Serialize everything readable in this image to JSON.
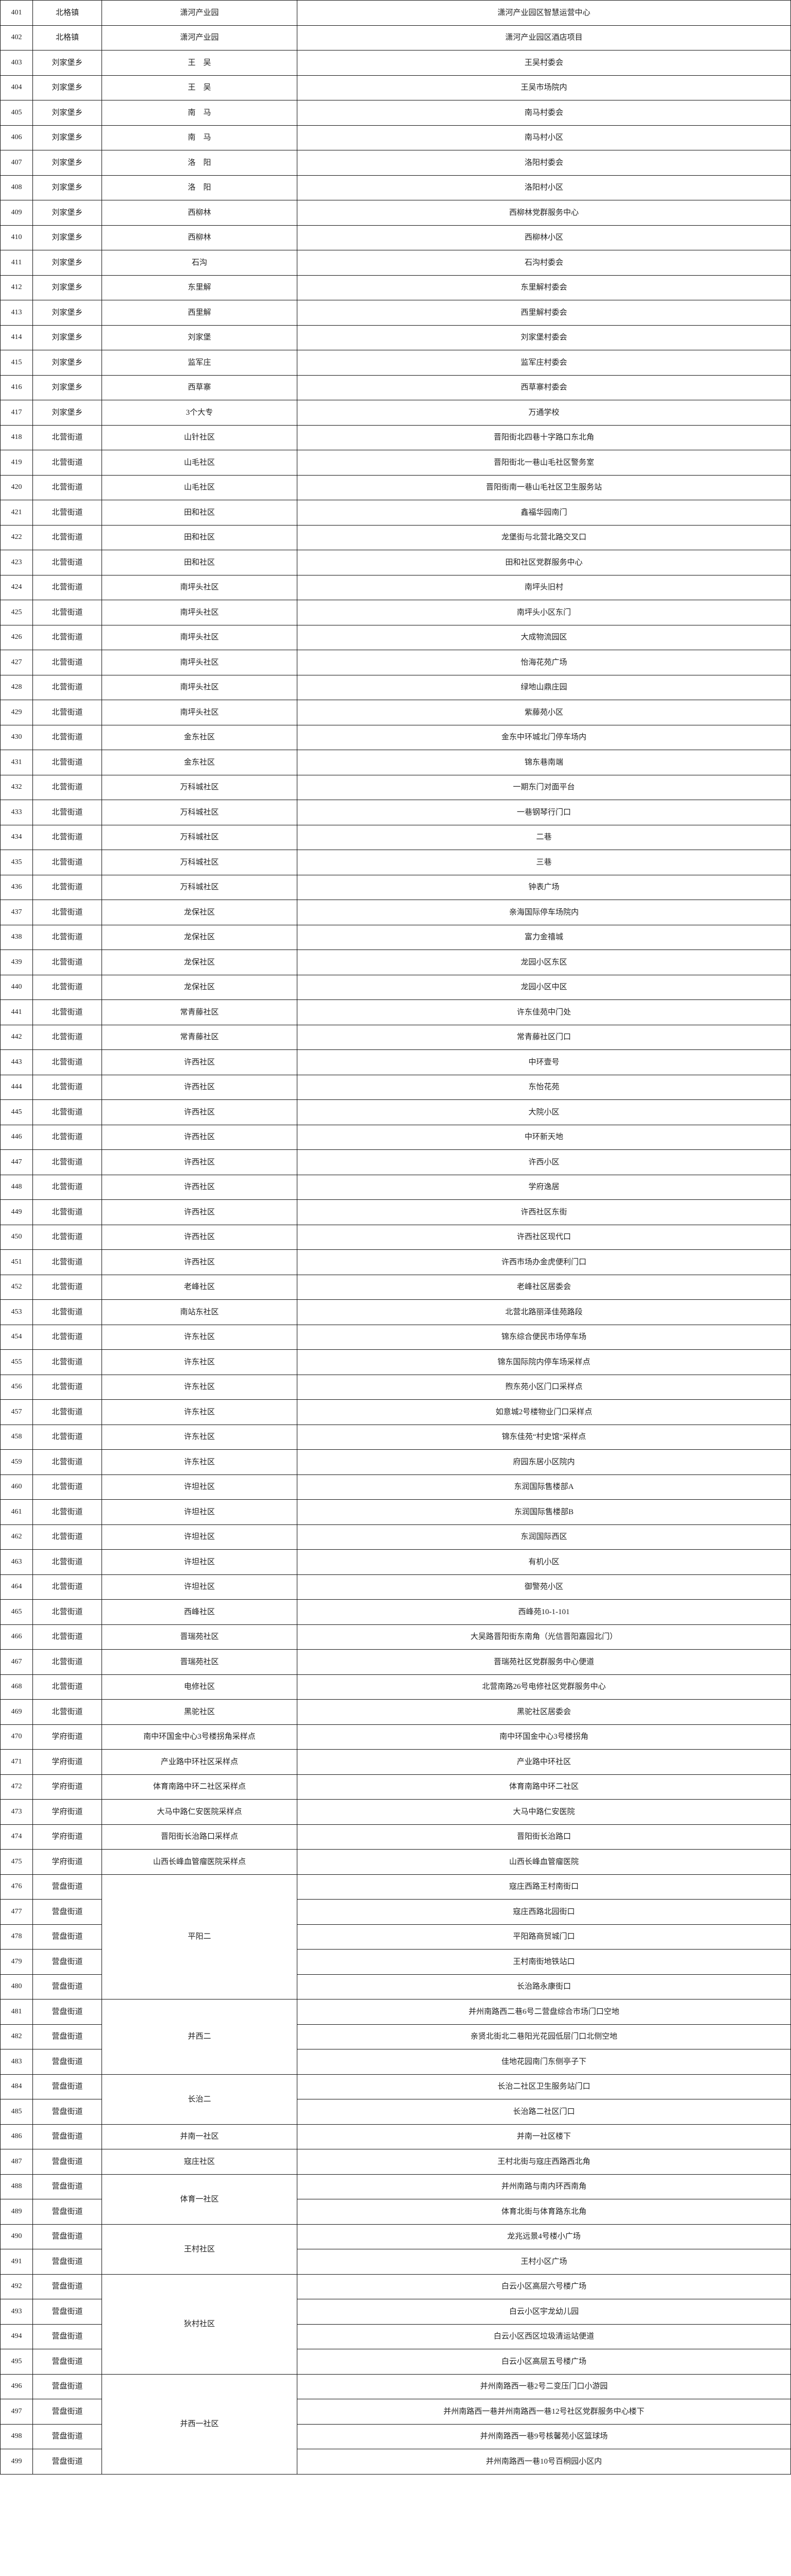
{
  "rows": [
    {
      "no": "401",
      "district": "北格镇",
      "community": "潇河产业园",
      "location": "潇河产业园区智慧运营中心"
    },
    {
      "no": "402",
      "district": "北格镇",
      "community": "潇河产业园",
      "location": "潇河产业园区酒店项目"
    },
    {
      "no": "403",
      "district": "刘家堡乡",
      "community": "王　吴",
      "location": "王吴村委会"
    },
    {
      "no": "404",
      "district": "刘家堡乡",
      "community": "王　吴",
      "location": "王吴市场院内"
    },
    {
      "no": "405",
      "district": "刘家堡乡",
      "community": "南　马",
      "location": "南马村委会"
    },
    {
      "no": "406",
      "district": "刘家堡乡",
      "community": "南　马",
      "location": "南马村小区"
    },
    {
      "no": "407",
      "district": "刘家堡乡",
      "community": "洛　阳",
      "location": "洛阳村委会"
    },
    {
      "no": "408",
      "district": "刘家堡乡",
      "community": "洛　阳",
      "location": "洛阳村小区"
    },
    {
      "no": "409",
      "district": "刘家堡乡",
      "community": "西柳林",
      "location": "西柳林党群服务中心"
    },
    {
      "no": "410",
      "district": "刘家堡乡",
      "community": "西柳林",
      "location": "西柳林小区"
    },
    {
      "no": "411",
      "district": "刘家堡乡",
      "community": "石沟",
      "location": "石沟村委会"
    },
    {
      "no": "412",
      "district": "刘家堡乡",
      "community": "东里解",
      "location": "东里解村委会"
    },
    {
      "no": "413",
      "district": "刘家堡乡",
      "community": "西里解",
      "location": "西里解村委会"
    },
    {
      "no": "414",
      "district": "刘家堡乡",
      "community": "刘家堡",
      "location": "刘家堡村委会"
    },
    {
      "no": "415",
      "district": "刘家堡乡",
      "community": "监军庄",
      "location": "监军庄村委会"
    },
    {
      "no": "416",
      "district": "刘家堡乡",
      "community": "西草寨",
      "location": "西草寨村委会"
    },
    {
      "no": "417",
      "district": "刘家堡乡",
      "community": "3个大专",
      "location": "万通学校"
    },
    {
      "no": "418",
      "district": "北营街道",
      "community": "山针社区",
      "location": "晋阳街北四巷十字路口东北角"
    },
    {
      "no": "419",
      "district": "北营街道",
      "community": "山毛社区",
      "location": "晋阳街北一巷山毛社区警务室"
    },
    {
      "no": "420",
      "district": "北营街道",
      "community": "山毛社区",
      "location": "晋阳街南一巷山毛社区卫生服务站"
    },
    {
      "no": "421",
      "district": "北营街道",
      "community": "田和社区",
      "location": "鑫福华园南门"
    },
    {
      "no": "422",
      "district": "北营街道",
      "community": "田和社区",
      "location": "龙堡街与北营北路交叉口"
    },
    {
      "no": "423",
      "district": "北营街道",
      "community": "田和社区",
      "location": "田和社区党群服务中心"
    },
    {
      "no": "424",
      "district": "北营街道",
      "community": "南坪头社区",
      "location": "南坪头旧村"
    },
    {
      "no": "425",
      "district": "北营街道",
      "community": "南坪头社区",
      "location": "南坪头小区东门"
    },
    {
      "no": "426",
      "district": "北营街道",
      "community": "南坪头社区",
      "location": "大成物流园区"
    },
    {
      "no": "427",
      "district": "北营街道",
      "community": "南坪头社区",
      "location": "怡海花苑广场"
    },
    {
      "no": "428",
      "district": "北营街道",
      "community": "南坪头社区",
      "location": "绿地山鼎庄园"
    },
    {
      "no": "429",
      "district": "北营街道",
      "community": "南坪头社区",
      "location": "紫藤苑小区"
    },
    {
      "no": "430",
      "district": "北营街道",
      "community": "金东社区",
      "location": "金东中环城北门停车场内"
    },
    {
      "no": "431",
      "district": "北营街道",
      "community": "金东社区",
      "location": "锦东巷南端"
    },
    {
      "no": "432",
      "district": "北营街道",
      "community": "万科城社区",
      "location": "一期东门对面平台"
    },
    {
      "no": "433",
      "district": "北营街道",
      "community": "万科城社区",
      "location": "一巷钢琴行门口"
    },
    {
      "no": "434",
      "district": "北营街道",
      "community": "万科城社区",
      "location": "二巷"
    },
    {
      "no": "435",
      "district": "北营街道",
      "community": "万科城社区",
      "location": "三巷"
    },
    {
      "no": "436",
      "district": "北营街道",
      "community": "万科城社区",
      "location": "钟表广场"
    },
    {
      "no": "437",
      "district": "北营街道",
      "community": "龙保社区",
      "location": "亲海国际停车场院内"
    },
    {
      "no": "438",
      "district": "北营街道",
      "community": "龙保社区",
      "location": "富力金禧城"
    },
    {
      "no": "439",
      "district": "北营街道",
      "community": "龙保社区",
      "location": "龙园小区东区"
    },
    {
      "no": "440",
      "district": "北营街道",
      "community": "龙保社区",
      "location": "龙园小区中区"
    },
    {
      "no": "441",
      "district": "北营街道",
      "community": "常青藤社区",
      "location": "许东佳苑中门处"
    },
    {
      "no": "442",
      "district": "北营街道",
      "community": "常青藤社区",
      "location": "常青藤社区门口"
    },
    {
      "no": "443",
      "district": "北营街道",
      "community": "许西社区",
      "location": "中环壹号"
    },
    {
      "no": "444",
      "district": "北营街道",
      "community": "许西社区",
      "location": "东怡花苑"
    },
    {
      "no": "445",
      "district": "北营街道",
      "community": "许西社区",
      "location": "大院小区"
    },
    {
      "no": "446",
      "district": "北营街道",
      "community": "许西社区",
      "location": "中环新天地"
    },
    {
      "no": "447",
      "district": "北营街道",
      "community": "许西社区",
      "location": "许西小区"
    },
    {
      "no": "448",
      "district": "北营街道",
      "community": "许西社区",
      "location": "学府逸居"
    },
    {
      "no": "449",
      "district": "北营街道",
      "community": "许西社区",
      "location": "许西社区东街"
    },
    {
      "no": "450",
      "district": "北营街道",
      "community": "许西社区",
      "location": "许西社区现代口"
    },
    {
      "no": "451",
      "district": "北营街道",
      "community": "许西社区",
      "location": "许西市场办金虎便利门口"
    },
    {
      "no": "452",
      "district": "北营街道",
      "community": "老峰社区",
      "location": "老峰社区居委会"
    },
    {
      "no": "453",
      "district": "北营街道",
      "community": "南站东社区",
      "location": "北营北路丽泽佳苑路段"
    },
    {
      "no": "454",
      "district": "北营街道",
      "community": "许东社区",
      "location": "锦东综合便民市场停车场"
    },
    {
      "no": "455",
      "district": "北营街道",
      "community": "许东社区",
      "location": "锦东国际院内停车场采样点"
    },
    {
      "no": "456",
      "district": "北营街道",
      "community": "许东社区",
      "location": "煦东苑小区门口采样点"
    },
    {
      "no": "457",
      "district": "北营街道",
      "community": "许东社区",
      "location": "如意城2号楼物业门口采样点"
    },
    {
      "no": "458",
      "district": "北营街道",
      "community": "许东社区",
      "location": "锦东佳苑“村史馆”采样点"
    },
    {
      "no": "459",
      "district": "北营街道",
      "community": "许东社区",
      "location": "府园东居小区院内"
    },
    {
      "no": "460",
      "district": "北营街道",
      "community": "许坦社区",
      "location": "东润国际售楼部A"
    },
    {
      "no": "461",
      "district": "北营街道",
      "community": "许坦社区",
      "location": "东润国际售楼部B"
    },
    {
      "no": "462",
      "district": "北营街道",
      "community": "许坦社区",
      "location": "东润国际西区"
    },
    {
      "no": "463",
      "district": "北营街道",
      "community": "许坦社区",
      "location": "有机小区"
    },
    {
      "no": "464",
      "district": "北营街道",
      "community": "许坦社区",
      "location": "御警苑小区"
    },
    {
      "no": "465",
      "district": "北营街道",
      "community": "西峰社区",
      "location": "西峰苑10-1-101"
    },
    {
      "no": "466",
      "district": "北营街道",
      "community": "晋瑞苑社区",
      "location": "大吴路晋阳街东南角（光信晋阳嘉园北门）"
    },
    {
      "no": "467",
      "district": "北营街道",
      "community": "晋瑞苑社区",
      "location": "晋瑞苑社区党群服务中心便道"
    },
    {
      "no": "468",
      "district": "北营街道",
      "community": "电修社区",
      "location": "北营南路26号电修社区党群服务中心"
    },
    {
      "no": "469",
      "district": "北营街道",
      "community": "黑驼社区",
      "location": "黑驼社区居委会"
    },
    {
      "no": "470",
      "district": "学府街道",
      "community": "南中环国金中心3号楼拐角采样点",
      "location": "南中环国金中心3号楼拐角"
    },
    {
      "no": "471",
      "district": "学府街道",
      "community": "产业路中环社区采样点",
      "location": "产业路中环社区"
    },
    {
      "no": "472",
      "district": "学府街道",
      "community": "体育南路中环二社区采样点",
      "location": "体育南路中环二社区"
    },
    {
      "no": "473",
      "district": "学府街道",
      "community": "大马中路仁安医院采样点",
      "location": "大马中路仁安医院"
    },
    {
      "no": "474",
      "district": "学府街道",
      "community": "晋阳街长治路口采样点",
      "location": "晋阳街长治路口"
    },
    {
      "no": "475",
      "district": "学府街道",
      "community": "山西长峰血管瘤医院采样点",
      "location": "山西长峰血管瘤医院"
    },
    {
      "no": "476",
      "district": "营盘街道",
      "community": "平阳二",
      "rowspan": 5,
      "location": "寇庄西路王村南街口"
    },
    {
      "no": "477",
      "district": "营盘街道",
      "location": "寇庄西路北园街口"
    },
    {
      "no": "478",
      "district": "营盘街道",
      "location": "平阳路商贸城门口"
    },
    {
      "no": "479",
      "district": "营盘街道",
      "location": "王村南街地铁站口"
    },
    {
      "no": "480",
      "district": "营盘街道",
      "location": "长治路永康街口"
    },
    {
      "no": "481",
      "district": "营盘街道",
      "community": "并西二",
      "rowspan": 3,
      "location": "并州南路西二巷6号二营盘综合市场门口空地"
    },
    {
      "no": "482",
      "district": "营盘街道",
      "location": "亲贤北街北二巷阳光花园低层门口北侧空地"
    },
    {
      "no": "483",
      "district": "营盘街道",
      "location": "佳地花园南门东侧亭子下"
    },
    {
      "no": "484",
      "district": "营盘街道",
      "community": "长治二",
      "rowspan": 2,
      "location": "长治二社区卫生服务站门口"
    },
    {
      "no": "485",
      "district": "营盘街道",
      "location": "长治路二社区门口"
    },
    {
      "no": "486",
      "district": "营盘街道",
      "community": "并南一社区",
      "location": "并南一社区楼下"
    },
    {
      "no": "487",
      "district": "营盘街道",
      "community": "寇庄社区",
      "location": "王村北街与寇庄西路西北角"
    },
    {
      "no": "488",
      "district": "营盘街道",
      "community": "体育一社区",
      "rowspan": 2,
      "location": "并州南路与南内环西南角"
    },
    {
      "no": "489",
      "district": "营盘街道",
      "location": "体育北街与体育路东北角"
    },
    {
      "no": "490",
      "district": "营盘街道",
      "community": "王村社区",
      "rowspan": 2,
      "location": "龙兆远景4号楼小广场"
    },
    {
      "no": "491",
      "district": "营盘街道",
      "location": "王村小区广场"
    },
    {
      "no": "492",
      "district": "营盘街道",
      "community": "狄村社区",
      "rowspan": 4,
      "location": "白云小区高层六号楼广场"
    },
    {
      "no": "493",
      "district": "营盘街道",
      "location": "白云小区宇龙幼儿园"
    },
    {
      "no": "494",
      "district": "营盘街道",
      "location": "白云小区西区垃圾清运站便道"
    },
    {
      "no": "495",
      "district": "营盘街道",
      "location": "白云小区高层五号楼广场"
    },
    {
      "no": "496",
      "district": "营盘街道",
      "community": "并西一社区",
      "rowspan": 4,
      "location": "并州南路西一巷2号二变压门口小游园"
    },
    {
      "no": "497",
      "district": "营盘街道",
      "location": "并州南路西一巷并州南路西一巷12号社区党群服务中心楼下"
    },
    {
      "no": "498",
      "district": "营盘街道",
      "location": "并州南路西一巷9号核馨苑小区篮球场"
    },
    {
      "no": "499",
      "district": "营盘街道",
      "location": "并州南路西一巷10号百桐园小区内"
    }
  ]
}
